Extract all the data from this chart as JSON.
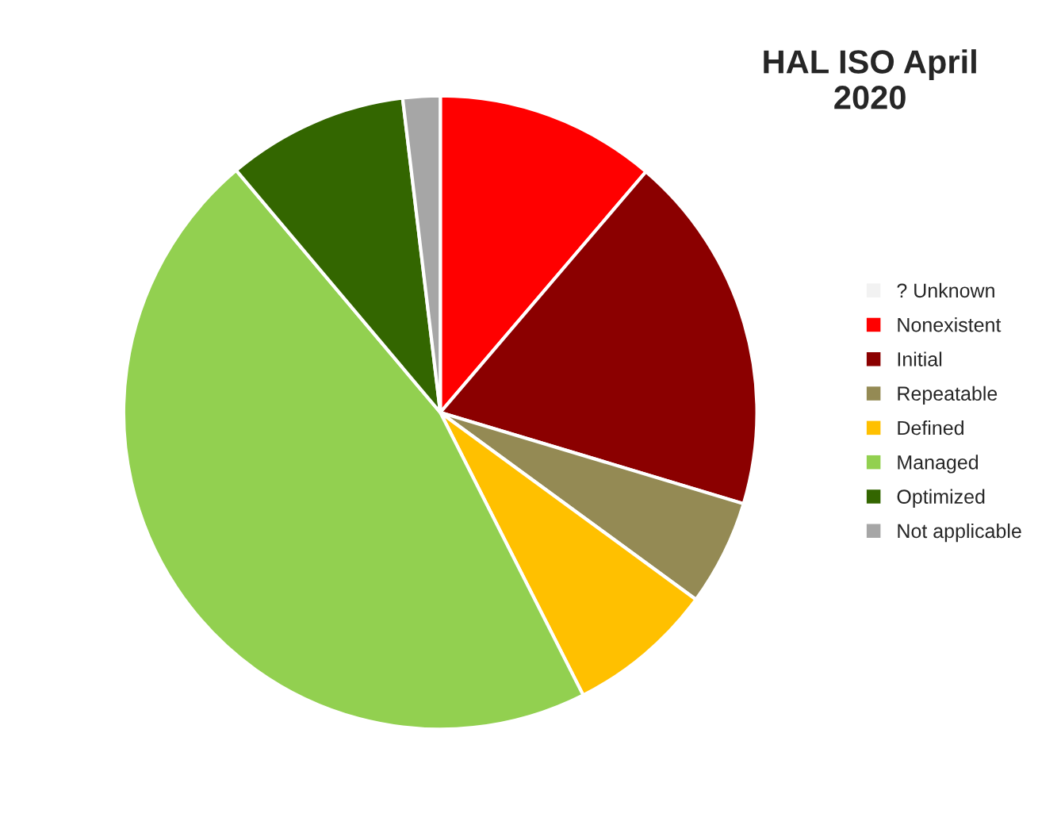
{
  "chart_data": {
    "type": "pie",
    "title": "HAL ISO April\n2020",
    "categories": [
      "? Unknown",
      "Nonexistent",
      "Initial",
      "Repeatable",
      "Defined",
      "Managed",
      "Optimized",
      "Not applicable"
    ],
    "values": [
      0,
      11.25,
      18.4,
      5.4,
      7.5,
      46.3,
      9.25,
      1.9
    ],
    "colors": [
      "#f2f2f2",
      "#ff0000",
      "#8b0000",
      "#948a54",
      "#ffc000",
      "#92d050",
      "#336600",
      "#a6a6a6"
    ],
    "legend": "right"
  }
}
